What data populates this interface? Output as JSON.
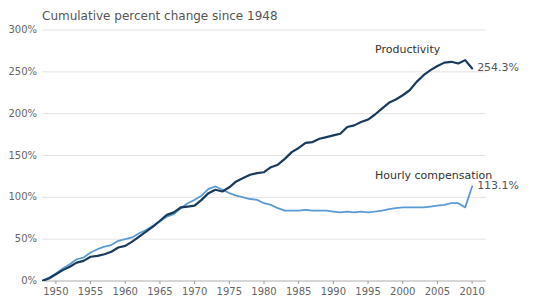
{
  "chart_data": {
    "type": "line",
    "title": "Cumulative percent change since 1948",
    "x": [
      1948,
      1949,
      1950,
      1951,
      1952,
      1953,
      1954,
      1955,
      1956,
      1957,
      1958,
      1959,
      1960,
      1961,
      1962,
      1963,
      1964,
      1965,
      1966,
      1967,
      1968,
      1969,
      1970,
      1971,
      1972,
      1973,
      1974,
      1975,
      1976,
      1977,
      1978,
      1979,
      1980,
      1981,
      1982,
      1983,
      1984,
      1985,
      1986,
      1987,
      1988,
      1989,
      1990,
      1991,
      1992,
      1993,
      1994,
      1995,
      1996,
      1997,
      1998,
      1999,
      2000,
      2001,
      2002,
      2003,
      2004,
      2005,
      2006,
      2007,
      2008,
      2009,
      2010
    ],
    "series": [
      {
        "name": "Productivity",
        "color": "#1a3a5c",
        "values": [
          0,
          3,
          8,
          13,
          17,
          22,
          24,
          29,
          30,
          32,
          35,
          40,
          42,
          47,
          53,
          59,
          65,
          72,
          79,
          82,
          88,
          89,
          90,
          97,
          105,
          109,
          107,
          112,
          119,
          123,
          127,
          129,
          130,
          136,
          139,
          146,
          154,
          159,
          165,
          166,
          170,
          172,
          174,
          176,
          184,
          186,
          190,
          193,
          199,
          206,
          213,
          217,
          222,
          228,
          238,
          246,
          252,
          257,
          261,
          262,
          260,
          264,
          254
        ]
      },
      {
        "name": "Hourly compensation",
        "color": "#5b9bd5",
        "values": [
          0,
          4,
          9,
          15,
          20,
          26,
          28,
          34,
          38,
          41,
          43,
          48,
          50,
          52,
          57,
          61,
          66,
          71,
          77,
          80,
          87,
          93,
          97,
          102,
          110,
          113,
          109,
          105,
          102,
          100,
          98,
          97,
          93,
          91,
          87,
          84,
          84,
          84,
          85,
          84,
          84,
          84,
          83,
          82,
          83,
          82,
          83,
          82,
          83,
          84,
          86,
          87,
          88,
          88,
          88,
          88,
          89,
          90,
          91,
          93,
          93,
          88,
          113
        ]
      }
    ],
    "annotations": [
      "254.3%",
      "113.1%"
    ],
    "xlim": [
      1948,
      2012
    ],
    "ylim": [
      0,
      300
    ],
    "xticks": [
      1950,
      1955,
      1960,
      1965,
      1970,
      1975,
      1980,
      1985,
      1990,
      1995,
      2000,
      2005,
      2010
    ],
    "yticks": [
      {
        "value": 0,
        "label": "0%"
      },
      {
        "value": 50,
        "label": "50%"
      },
      {
        "value": 100,
        "label": "100%"
      },
      {
        "value": 150,
        "label": "150%"
      },
      {
        "value": 200,
        "label": "200%"
      },
      {
        "value": 250,
        "label": "250%"
      },
      {
        "value": 300,
        "label": "300%"
      }
    ],
    "grid": true
  }
}
